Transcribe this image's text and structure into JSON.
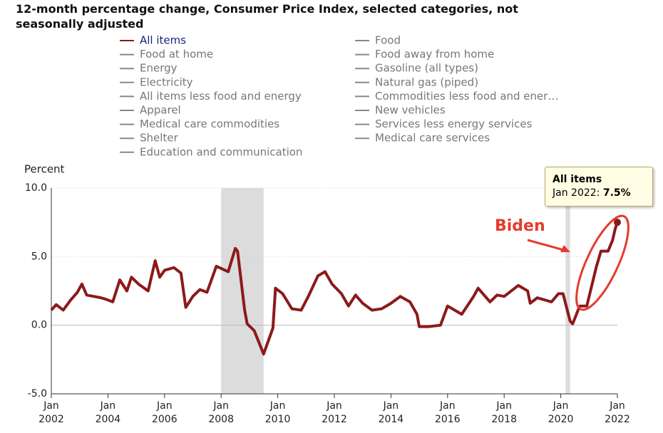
{
  "chart_data": {
    "type": "line",
    "title": "12-month percentage change, Consumer Price Index, selected categories, not seasonally adjusted",
    "y_label": "Percent",
    "x": [
      2002.0,
      2002.17,
      2002.42,
      2002.67,
      2002.92,
      2003.08,
      2003.25,
      2003.5,
      2003.75,
      2003.92,
      2004.17,
      2004.42,
      2004.67,
      2004.83,
      2005.08,
      2005.42,
      2005.67,
      2005.83,
      2006.0,
      2006.33,
      2006.58,
      2006.75,
      2007.0,
      2007.25,
      2007.5,
      2007.83,
      2008.25,
      2008.5,
      2008.58,
      2008.83,
      2008.92,
      2009.17,
      2009.5,
      2009.83,
      2009.92,
      2010.17,
      2010.5,
      2010.83,
      2011.08,
      2011.42,
      2011.67,
      2011.92,
      2012.25,
      2012.5,
      2012.75,
      2013.0,
      2013.33,
      2013.67,
      2014.0,
      2014.33,
      2014.67,
      2014.92,
      2015.0,
      2015.33,
      2015.75,
      2016.0,
      2016.25,
      2016.5,
      2016.92,
      2017.08,
      2017.5,
      2017.75,
      2018.0,
      2018.5,
      2018.83,
      2018.92,
      2019.17,
      2019.67,
      2019.92,
      2020.08,
      2020.33,
      2020.42,
      2020.67,
      2020.92,
      2021.25,
      2021.42,
      2021.67,
      2021.83,
      2021.92,
      2022.0
    ],
    "series": [
      {
        "name": "All items",
        "color": "#8b1a1a",
        "values": [
          1.1,
          1.5,
          1.1,
          1.8,
          2.4,
          3.0,
          2.2,
          2.1,
          2.0,
          1.9,
          1.7,
          3.3,
          2.5,
          3.5,
          3.0,
          2.5,
          4.7,
          3.5,
          4.0,
          4.2,
          3.8,
          1.3,
          2.1,
          2.6,
          2.4,
          4.3,
          3.9,
          5.6,
          5.4,
          1.1,
          0.1,
          -0.4,
          -2.1,
          -0.2,
          2.7,
          2.3,
          1.2,
          1.1,
          2.1,
          3.6,
          3.9,
          3.0,
          2.3,
          1.4,
          2.2,
          1.6,
          1.1,
          1.2,
          1.6,
          2.1,
          1.7,
          0.8,
          -0.1,
          -0.1,
          0.0,
          1.4,
          1.1,
          0.8,
          2.1,
          2.7,
          1.7,
          2.2,
          2.1,
          2.9,
          2.5,
          1.6,
          2.0,
          1.7,
          2.3,
          2.3,
          0.3,
          0.1,
          1.4,
          1.4,
          4.2,
          5.4,
          5.4,
          6.2,
          7.0,
          7.5
        ]
      },
      {
        "name": "Food at home",
        "color": "#888888"
      },
      {
        "name": "Energy",
        "color": "#888888"
      },
      {
        "name": "Electricity",
        "color": "#888888"
      },
      {
        "name": "All items less food and energy",
        "color": "#888888"
      },
      {
        "name": "Apparel",
        "color": "#888888"
      },
      {
        "name": "Medical care commodities",
        "color": "#888888"
      },
      {
        "name": "Shelter",
        "color": "#888888"
      },
      {
        "name": "Education and communication",
        "color": "#888888"
      },
      {
        "name": "Food",
        "color": "#888888"
      },
      {
        "name": "Food away from home",
        "color": "#888888"
      },
      {
        "name": "Gasoline (all types)",
        "color": "#888888"
      },
      {
        "name": "Natural gas (piped)",
        "color": "#888888"
      },
      {
        "name": "Commodities less food and ener…",
        "color": "#888888"
      },
      {
        "name": "New vehicles",
        "color": "#888888"
      },
      {
        "name": "Services less energy services",
        "color": "#888888"
      },
      {
        "name": "Medical care services",
        "color": "#888888"
      }
    ],
    "recessions": [
      [
        2008.0,
        2009.5
      ],
      [
        2020.17,
        2020.33
      ]
    ],
    "xlim": [
      2002.0,
      2022.0
    ],
    "xticks": [
      {
        "value": 2002,
        "label": "Jan 2002"
      },
      {
        "value": 2004,
        "label": "Jan 2004"
      },
      {
        "value": 2006,
        "label": "Jan 2006"
      },
      {
        "value": 2008,
        "label": "Jan 2008"
      },
      {
        "value": 2010,
        "label": "Jan 2010"
      },
      {
        "value": 2012,
        "label": "Jan 2012"
      },
      {
        "value": 2014,
        "label": "Jan 2014"
      },
      {
        "value": 2016,
        "label": "Jan 2016"
      },
      {
        "value": 2018,
        "label": "Jan 2018"
      },
      {
        "value": 2020,
        "label": "Jan 2020"
      },
      {
        "value": 2022,
        "label": "Jan 2022"
      }
    ],
    "ylim": [
      -5,
      10
    ],
    "yticks": [
      {
        "value": -5,
        "label": "-5.0"
      },
      {
        "value": 0,
        "label": "0.0"
      },
      {
        "value": 5,
        "label": "5.0"
      },
      {
        "value": 10,
        "label": "10.0"
      }
    ],
    "grid": true,
    "annotation": "Biden",
    "tooltip": {
      "title": "All items",
      "date": "Jan 2022:",
      "value_label": "7.5%"
    }
  }
}
